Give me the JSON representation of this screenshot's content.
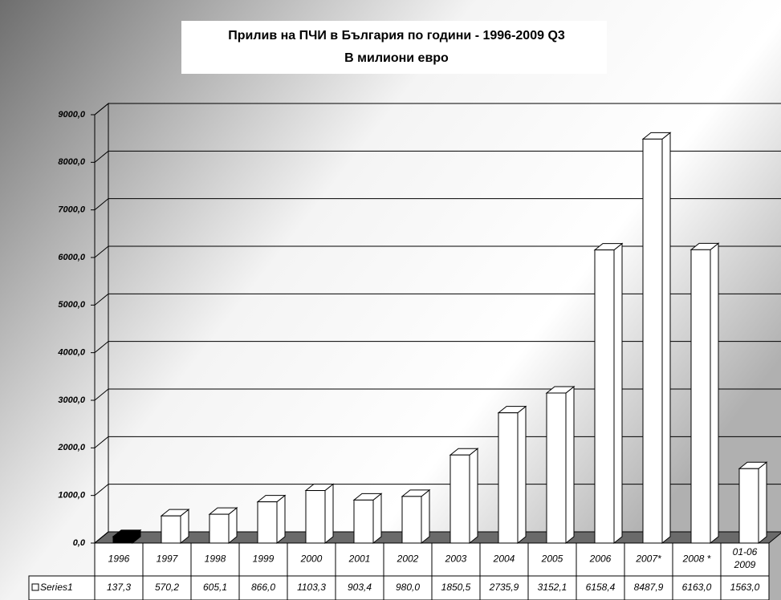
{
  "chart_data": {
    "type": "bar",
    "title": "Прилив на ПЧИ в България по години - 1996-2009 Q3",
    "subtitle": "В милиони евро",
    "categories": [
      "1996",
      "1997",
      "1998",
      "1999",
      "2000",
      "2001",
      "2002",
      "2003",
      "2004",
      "2005",
      "2006",
      "2007*",
      "2008 *",
      "01-06 2009"
    ],
    "series": [
      {
        "name": "Series1",
        "values": [
          137.3,
          570.2,
          605.1,
          866.0,
          1103.3,
          903.4,
          980.0,
          1850.5,
          2735.9,
          3152.1,
          6158.4,
          8487.9,
          6163.0,
          1563.0
        ],
        "value_labels": [
          "137,3",
          "570,2",
          "605,1",
          "866,0",
          "1103,3",
          "903,4",
          "980,0",
          "1850,5",
          "2735,9",
          "3152,1",
          "6158,4",
          "8487,9",
          "6163,0",
          "1563,0"
        ],
        "colors": [
          "#000000",
          "#ffffff",
          "#ffffff",
          "#ffffff",
          "#ffffff",
          "#ffffff",
          "#ffffff",
          "#ffffff",
          "#ffffff",
          "#ffffff",
          "#ffffff",
          "#ffffff",
          "#ffffff",
          "#ffffff"
        ]
      }
    ],
    "ylim": [
      0,
      9000
    ],
    "yticks": [
      {
        "value": 0,
        "label": "0,0"
      },
      {
        "value": 1000,
        "label": "1000,0"
      },
      {
        "value": 2000,
        "label": "2000,0"
      },
      {
        "value": 3000,
        "label": "3000,0"
      },
      {
        "value": 4000,
        "label": "4000,0"
      },
      {
        "value": 5000,
        "label": "5000,0"
      },
      {
        "value": 6000,
        "label": "6000,0"
      },
      {
        "value": 7000,
        "label": "7000,0"
      },
      {
        "value": 8000,
        "label": "8000,0"
      },
      {
        "value": 9000,
        "label": "9000,0"
      }
    ],
    "grid": true
  }
}
